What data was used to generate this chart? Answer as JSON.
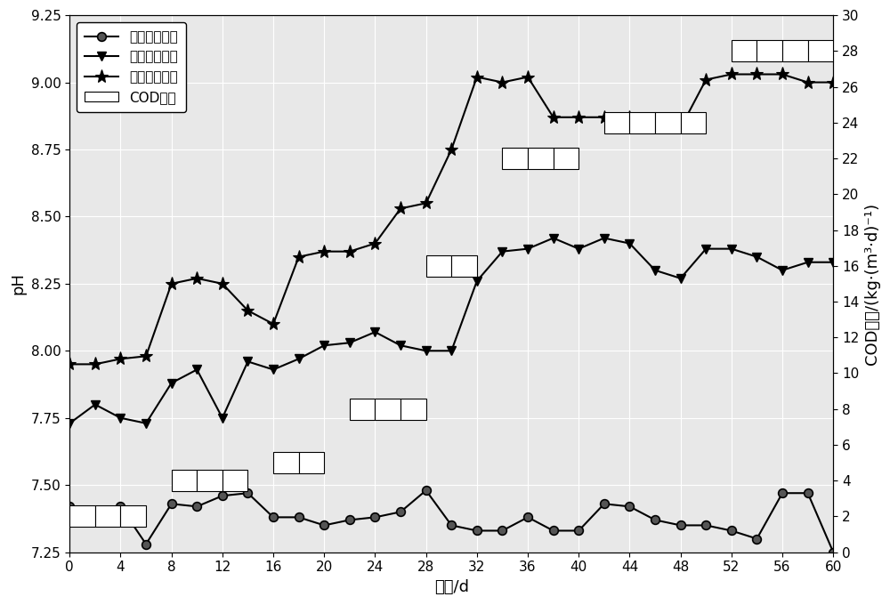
{
  "xlabel": "时间/d",
  "ylabel_left": "pH",
  "ylabel_right": "COD负荷/(kg·(m³·d)⁻¹",
  "x_inflow": [
    0,
    2,
    4,
    6,
    8,
    10,
    12,
    14,
    16,
    18,
    20,
    22,
    24,
    26,
    28,
    30,
    32,
    34,
    36,
    38,
    40,
    42,
    44,
    46,
    48,
    50,
    52,
    54,
    56,
    58,
    60
  ],
  "y_inflow": [
    7.42,
    7.38,
    7.42,
    7.28,
    7.43,
    7.42,
    7.46,
    7.47,
    7.38,
    7.38,
    7.35,
    7.37,
    7.38,
    7.4,
    7.48,
    7.35,
    7.33,
    7.33,
    7.38,
    7.33,
    7.33,
    7.43,
    7.42,
    7.37,
    7.35,
    7.35,
    7.33,
    7.3,
    7.47,
    7.47,
    7.25
  ],
  "x_out1": [
    0,
    2,
    4,
    6,
    8,
    10,
    12,
    14,
    16,
    18,
    20,
    22,
    24,
    26,
    28,
    30,
    32,
    34,
    36,
    38,
    40,
    42,
    44,
    46,
    48,
    50,
    52,
    54,
    56,
    58,
    60
  ],
  "y_out1": [
    7.73,
    7.8,
    7.75,
    7.73,
    7.88,
    7.93,
    7.75,
    7.96,
    7.93,
    7.97,
    8.02,
    8.03,
    8.07,
    8.02,
    8.0,
    8.0,
    8.26,
    8.37,
    8.38,
    8.42,
    8.38,
    8.42,
    8.4,
    8.3,
    8.27,
    8.38,
    8.38,
    8.35,
    8.3,
    8.33,
    8.33
  ],
  "x_out2": [
    0,
    2,
    4,
    6,
    8,
    10,
    12,
    14,
    16,
    18,
    20,
    22,
    24,
    26,
    28,
    30,
    32,
    34,
    36,
    38,
    40,
    42,
    44,
    46,
    48,
    50,
    52,
    54,
    56,
    58,
    60
  ],
  "y_out2": [
    7.95,
    7.95,
    7.97,
    7.98,
    8.25,
    8.27,
    8.25,
    8.15,
    8.1,
    8.35,
    8.37,
    8.37,
    8.4,
    8.53,
    8.55,
    8.75,
    9.02,
    9.0,
    9.02,
    8.87,
    8.87,
    8.87,
    8.87,
    8.85,
    8.83,
    9.01,
    9.03,
    9.03,
    9.03,
    9.0,
    9.0
  ],
  "cod_steps": [
    {
      "x_start": 0,
      "x_end": 6,
      "y": 2
    },
    {
      "x_start": 8,
      "x_end": 14,
      "y": 4
    },
    {
      "x_start": 16,
      "x_end": 20,
      "y": 5
    },
    {
      "x_start": 22,
      "x_end": 28,
      "y": 8
    },
    {
      "x_start": 28,
      "x_end": 32,
      "y": 16
    },
    {
      "x_start": 34,
      "x_end": 40,
      "y": 22
    },
    {
      "x_start": 42,
      "x_end": 50,
      "y": 24
    },
    {
      "x_start": 52,
      "x_end": 60,
      "y": 28
    }
  ],
  "xlim": [
    0,
    60
  ],
  "ylim_left": [
    7.25,
    9.25
  ],
  "ylim_right": [
    0,
    30
  ],
  "xticks": [
    0,
    4,
    8,
    12,
    16,
    20,
    24,
    28,
    32,
    36,
    40,
    44,
    48,
    52,
    56,
    60
  ],
  "yticks_left": [
    7.25,
    7.5,
    7.75,
    8.0,
    8.25,
    8.5,
    8.75,
    9.0,
    9.25
  ],
  "yticks_right": [
    0,
    2,
    4,
    6,
    8,
    10,
    12,
    14,
    16,
    18,
    20,
    22,
    24,
    26,
    28,
    30
  ],
  "line_color": "#000000",
  "background_color": "#e8e8e8",
  "grid_color": "#ffffff",
  "legend_label0": "一级厉氧进水",
  "legend_label1": "一级厉氧出水",
  "legend_label2": "二级厉氧出水",
  "legend_label3": "COD负荷"
}
